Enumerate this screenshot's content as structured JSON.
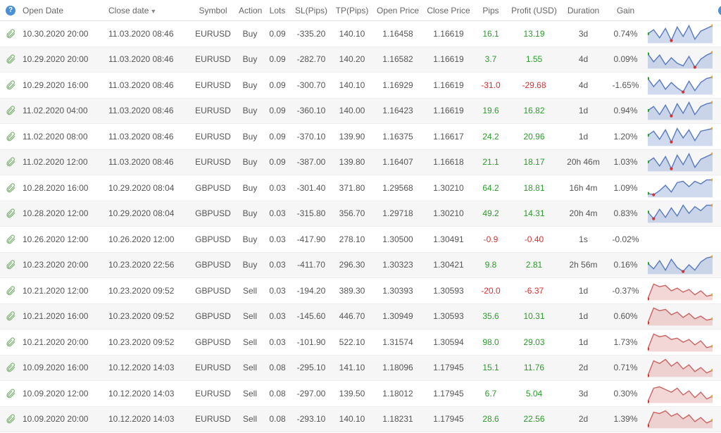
{
  "headers": {
    "open_date": "Open Date",
    "close_date": "Close date",
    "symbol": "Symbol",
    "action": "Action",
    "lots": "Lots",
    "sl": "SL(Pips)",
    "tp": "TP(Pips)",
    "open_price": "Open Price",
    "close_price": "Close Price",
    "pips": "Pips",
    "profit": "Profit (USD)",
    "duration": "Duration",
    "gain": "Gain"
  },
  "rows": [
    {
      "open": "10.30.2020 20:00",
      "close": "11.03.2020 08:46",
      "symbol": "EURUSD",
      "action": "Buy",
      "lots": "0.09",
      "sl": "-335.20",
      "tp": "140.10",
      "op": "1.16458",
      "cp": "1.16619",
      "pips": "16.1",
      "pips_pos": true,
      "profit": "13.19",
      "profit_pos": true,
      "dur": "3d",
      "gain": "0.74%",
      "spark": "buy",
      "pts": [
        14,
        8,
        20,
        6,
        24,
        4,
        18,
        2,
        22,
        10,
        6,
        2
      ]
    },
    {
      "open": "10.29.2020 20:00",
      "close": "11.03.2020 08:46",
      "symbol": "EURUSD",
      "action": "Buy",
      "lots": "0.09",
      "sl": "-282.70",
      "tp": "140.20",
      "op": "1.16582",
      "cp": "1.16619",
      "pips": "3.7",
      "pips_pos": true,
      "profit": "1.55",
      "profit_pos": true,
      "dur": "4d",
      "gain": "0.09%",
      "spark": "buy",
      "pts": [
        6,
        18,
        8,
        22,
        12,
        20,
        24,
        10,
        26,
        14,
        8,
        4
      ]
    },
    {
      "open": "10.29.2020 16:00",
      "close": "11.03.2020 08:46",
      "symbol": "EURUSD",
      "action": "Buy",
      "lots": "0.09",
      "sl": "-300.70",
      "tp": "140.10",
      "op": "1.16929",
      "cp": "1.16619",
      "pips": "-31.0",
      "pips_pos": false,
      "profit": "-29.68",
      "profit_pos": false,
      "dur": "4d",
      "gain": "-1.65%",
      "spark": "buy",
      "pts": [
        4,
        16,
        6,
        20,
        10,
        18,
        24,
        8,
        22,
        10,
        4,
        2
      ]
    },
    {
      "open": "11.02.2020 04:00",
      "close": "11.03.2020 08:46",
      "symbol": "EURUSD",
      "action": "Buy",
      "lots": "0.09",
      "sl": "-360.10",
      "tp": "140.00",
      "op": "1.16423",
      "cp": "1.16619",
      "pips": "19.6",
      "pips_pos": true,
      "profit": "16.82",
      "profit_pos": true,
      "dur": "1d",
      "gain": "0.94%",
      "spark": "buy",
      "pts": [
        14,
        8,
        20,
        6,
        22,
        4,
        18,
        2,
        20,
        8,
        4,
        2
      ]
    },
    {
      "open": "11.02.2020 08:00",
      "close": "11.03.2020 08:46",
      "symbol": "EURUSD",
      "action": "Buy",
      "lots": "0.09",
      "sl": "-370.10",
      "tp": "139.90",
      "op": "1.16375",
      "cp": "1.16617",
      "pips": "24.2",
      "pips_pos": true,
      "profit": "20.96",
      "profit_pos": true,
      "dur": "1d",
      "gain": "1.20%",
      "spark": "buy",
      "pts": [
        12,
        6,
        18,
        4,
        22,
        2,
        16,
        4,
        20,
        6,
        4,
        2
      ]
    },
    {
      "open": "11.02.2020 12:00",
      "close": "11.03.2020 08:46",
      "symbol": "EURUSD",
      "action": "Buy",
      "lots": "0.09",
      "sl": "-387.00",
      "tp": "139.80",
      "op": "1.16407",
      "cp": "1.16618",
      "pips": "21.1",
      "pips_pos": true,
      "profit": "18.17",
      "profit_pos": true,
      "dur": "20h 46m",
      "gain": "1.03%",
      "spark": "buy",
      "pts": [
        14,
        8,
        20,
        6,
        24,
        4,
        18,
        2,
        22,
        10,
        6,
        2
      ]
    },
    {
      "open": "10.28.2020 16:00",
      "close": "10.29.2020 08:04",
      "symbol": "GBPUSD",
      "action": "Buy",
      "lots": "0.03",
      "sl": "-301.40",
      "tp": "371.80",
      "op": "1.29568",
      "cp": "1.30210",
      "pips": "64.2",
      "pips_pos": true,
      "profit": "18.81",
      "profit_pos": true,
      "dur": "16h 4m",
      "gain": "1.09%",
      "spark": "buy",
      "pts": [
        22,
        24,
        18,
        10,
        20,
        6,
        4,
        12,
        4,
        8,
        2,
        2
      ]
    },
    {
      "open": "10.28.2020 12:00",
      "close": "10.29.2020 08:04",
      "symbol": "GBPUSD",
      "action": "Buy",
      "lots": "0.03",
      "sl": "-315.80",
      "tp": "356.70",
      "op": "1.29718",
      "cp": "1.30210",
      "pips": "49.2",
      "pips_pos": true,
      "profit": "14.31",
      "profit_pos": true,
      "dur": "20h 4m",
      "gain": "0.83%",
      "spark": "buy",
      "pts": [
        12,
        22,
        8,
        20,
        6,
        18,
        2,
        14,
        4,
        10,
        2,
        2
      ]
    },
    {
      "open": "10.26.2020 12:00",
      "close": "10.26.2020 12:00",
      "symbol": "GBPUSD",
      "action": "Buy",
      "lots": "0.03",
      "sl": "-417.90",
      "tp": "278.10",
      "op": "1.30500",
      "cp": "1.30491",
      "pips": "-0.9",
      "pips_pos": false,
      "profit": "-0.40",
      "profit_pos": false,
      "dur": "1s",
      "gain": "-0.02%",
      "spark": "none",
      "pts": []
    },
    {
      "open": "10.23.2020 20:00",
      "close": "10.23.2020 22:56",
      "symbol": "GBPUSD",
      "action": "Buy",
      "lots": "0.03",
      "sl": "-411.70",
      "tp": "296.30",
      "op": "1.30323",
      "cp": "1.30421",
      "pips": "9.8",
      "pips_pos": true,
      "profit": "2.81",
      "profit_pos": true,
      "dur": "2h 56m",
      "gain": "0.16%",
      "spark": "buy",
      "pts": [
        12,
        20,
        8,
        22,
        6,
        18,
        24,
        14,
        22,
        10,
        4,
        2
      ]
    },
    {
      "open": "10.21.2020 12:00",
      "close": "10.23.2020 09:52",
      "symbol": "GBPUSD",
      "action": "Sell",
      "lots": "0.03",
      "sl": "-194.20",
      "tp": "389.30",
      "op": "1.30393",
      "cp": "1.30593",
      "pips": "-20.0",
      "pips_pos": false,
      "profit": "-6.37",
      "profit_pos": false,
      "dur": "1d",
      "gain": "-0.37%",
      "spark": "sell",
      "pts": [
        26,
        4,
        8,
        6,
        14,
        10,
        16,
        12,
        20,
        14,
        22,
        20
      ]
    },
    {
      "open": "10.21.2020 16:00",
      "close": "10.23.2020 09:52",
      "symbol": "GBPUSD",
      "action": "Sell",
      "lots": "0.03",
      "sl": "-145.60",
      "tp": "446.70",
      "op": "1.30949",
      "cp": "1.30593",
      "pips": "35.6",
      "pips_pos": true,
      "profit": "10.31",
      "profit_pos": true,
      "dur": "1d",
      "gain": "0.60%",
      "spark": "sell",
      "pts": [
        24,
        2,
        6,
        4,
        12,
        8,
        16,
        10,
        18,
        14,
        20,
        18
      ]
    },
    {
      "open": "10.21.2020 20:00",
      "close": "10.23.2020 09:52",
      "symbol": "GBPUSD",
      "action": "Sell",
      "lots": "0.03",
      "sl": "-101.90",
      "tp": "522.10",
      "op": "1.31574",
      "cp": "1.30594",
      "pips": "98.0",
      "pips_pos": true,
      "profit": "29.03",
      "profit_pos": true,
      "dur": "1d",
      "gain": "1.73%",
      "spark": "sell",
      "pts": [
        24,
        2,
        6,
        4,
        10,
        8,
        14,
        10,
        18,
        12,
        22,
        20
      ]
    },
    {
      "open": "10.09.2020 16:00",
      "close": "10.12.2020 14:03",
      "symbol": "EURUSD",
      "action": "Sell",
      "lots": "0.08",
      "sl": "-295.10",
      "tp": "141.10",
      "op": "1.18096",
      "cp": "1.17945",
      "pips": "15.1",
      "pips_pos": true,
      "profit": "11.76",
      "profit_pos": true,
      "dur": "2d",
      "gain": "0.71%",
      "spark": "sell",
      "pts": [
        26,
        4,
        8,
        2,
        12,
        6,
        16,
        10,
        20,
        14,
        22,
        18
      ]
    },
    {
      "open": "10.09.2020 12:00",
      "close": "10.12.2020 14:03",
      "symbol": "EURUSD",
      "action": "Sell",
      "lots": "0.08",
      "sl": "-297.00",
      "tp": "139.50",
      "op": "1.18012",
      "cp": "1.17945",
      "pips": "6.7",
      "pips_pos": true,
      "profit": "5.04",
      "profit_pos": true,
      "dur": "3d",
      "gain": "0.30%",
      "spark": "sell",
      "pts": [
        26,
        6,
        4,
        8,
        12,
        6,
        16,
        10,
        20,
        12,
        22,
        18
      ]
    },
    {
      "open": "10.09.2020 20:00",
      "close": "10.12.2020 14:03",
      "symbol": "EURUSD",
      "action": "Sell",
      "lots": "0.08",
      "sl": "-293.10",
      "tp": "140.10",
      "op": "1.18231",
      "cp": "1.17945",
      "pips": "28.6",
      "pips_pos": true,
      "profit": "22.56",
      "profit_pos": true,
      "dur": "2d",
      "gain": "1.39%",
      "spark": "sell",
      "pts": [
        24,
        4,
        6,
        2,
        10,
        6,
        14,
        8,
        18,
        12,
        20,
        16
      ]
    }
  ],
  "spark_colors": {
    "buy_fill": "rgba(120,150,210,0.35)",
    "buy_line": "#5a7cc0",
    "sell_fill": "rgba(220,140,140,0.35)",
    "sell_line": "#cc6666",
    "dot_green": "#2a9c2a",
    "dot_red": "#d13333",
    "dot_orange": "#e8a030"
  }
}
